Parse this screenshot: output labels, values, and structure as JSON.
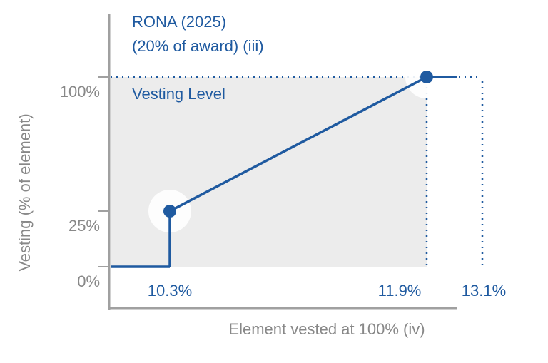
{
  "chart_data": {
    "type": "line",
    "title": "RONA (2025)",
    "subtitle": "(20% of award) (iii)",
    "annotation": "Vesting Level",
    "ylabel": "Vesting (% of element)",
    "xlabel": "Element vested at 100% (iv)",
    "x": [
      10.3,
      10.3,
      11.9
    ],
    "values": [
      0,
      25,
      100
    ],
    "color": "#1f5aa0",
    "xticks": [
      {
        "value": 10.3,
        "label": "10.3%"
      },
      {
        "value": 11.9,
        "label": "11.9%"
      },
      {
        "value": 13.1,
        "label": "13.1%"
      }
    ],
    "yticks": [
      {
        "value": 0,
        "label": "0%"
      },
      {
        "value": 25,
        "label": "25%"
      },
      {
        "value": 100,
        "label": "100%"
      }
    ]
  }
}
